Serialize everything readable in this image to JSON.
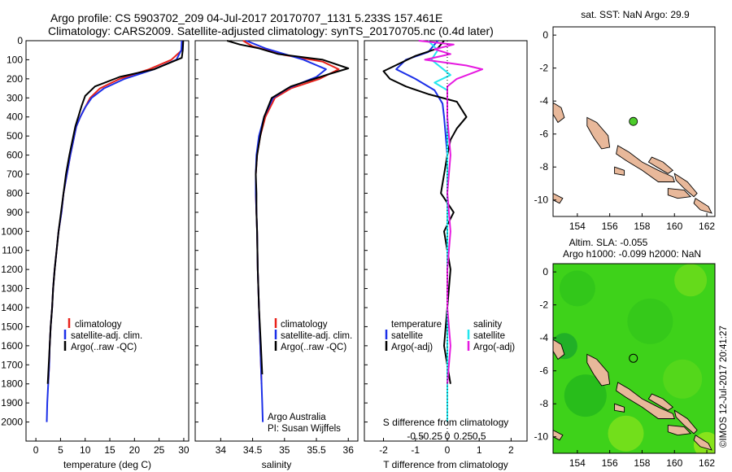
{
  "header": {
    "line1": "Argo profile: CS 5903702_209 04-Jul-2017 20170707_1131 5.233S 157.461E",
    "line2": "Climatology: CARS2009. Satellite-adjusted climatology: synTS_20170705.nc (0.4d later)"
  },
  "colors": {
    "climatology": "#e8221b",
    "satellite": "#1b2fe8",
    "argo": "#000000",
    "satellite_s": "#22e6ee",
    "argo_s": "#e619e0",
    "land": "#e8b89a",
    "argo_marker": "#4ccc2a",
    "sla_background": "#3ed21a"
  },
  "legends": {
    "temp": [
      "climatology",
      "satellite-adj. clim.",
      "Argo(..raw -QC)"
    ],
    "sal": [
      "climatology",
      "satellite-adj. clim.",
      "Argo(..raw -QC)"
    ],
    "diff_t_title": "temperature",
    "diff_t": [
      "satellite",
      "Argo(-adj)"
    ],
    "diff_s_title": "salinity",
    "diff_s": [
      "satellite",
      "Argo(-adj)"
    ]
  },
  "annotations": {
    "argo_australia": "Argo Australia",
    "pi": "PI: Susan Wijffels",
    "sst": "sat. SST: NaN Argo: 29.9",
    "sla1": "Altim. SLA: -0.055",
    "sla2": "Argo h1000: -0.099 h2000: NaN",
    "credit": "©IMOS 12-Jul-2017 20:41:27"
  },
  "chart_data": [
    {
      "type": "line",
      "xlabel": "temperature (deg C)",
      "xlim": [
        -2,
        31
      ],
      "xticks": [
        0,
        5,
        10,
        15,
        20,
        25,
        30
      ],
      "ylim": [
        2100,
        0
      ],
      "yticks": [
        0,
        100,
        200,
        300,
        400,
        500,
        600,
        700,
        800,
        900,
        1000,
        1100,
        1200,
        1300,
        1400,
        1500,
        1600,
        1700,
        1800,
        1900,
        2000
      ],
      "series": [
        {
          "name": "climatology",
          "color": "climatology",
          "points": [
            [
              29.7,
              0
            ],
            [
              29.6,
              50
            ],
            [
              27.5,
              100
            ],
            [
              23,
              150
            ],
            [
              17,
              200
            ],
            [
              13,
              250
            ],
            [
              11,
              300
            ],
            [
              10,
              350
            ],
            [
              9,
              400
            ],
            [
              8.2,
              450
            ],
            [
              7.8,
              500
            ],
            [
              7,
              600
            ],
            [
              6.3,
              700
            ],
            [
              5.6,
              800
            ],
            [
              5.2,
              900
            ],
            [
              4.6,
              1000
            ],
            [
              4.2,
              1100
            ],
            [
              3.8,
              1200
            ],
            [
              3.5,
              1300
            ],
            [
              3.3,
              1400
            ],
            [
              3,
              1500
            ],
            [
              2.8,
              1600
            ],
            [
              2.7,
              1700
            ],
            [
              2.5,
              1800
            ]
          ]
        },
        {
          "name": "satellite-adj. clim.",
          "color": "satellite",
          "points": [
            [
              29.6,
              0
            ],
            [
              29.5,
              50
            ],
            [
              28.5,
              100
            ],
            [
              24,
              150
            ],
            [
              18,
              200
            ],
            [
              13.8,
              250
            ],
            [
              11.3,
              300
            ],
            [
              10,
              350
            ],
            [
              9,
              400
            ],
            [
              8.2,
              450
            ],
            [
              7.8,
              500
            ],
            [
              7,
              600
            ],
            [
              6.3,
              700
            ],
            [
              5.6,
              800
            ],
            [
              5.2,
              900
            ],
            [
              4.6,
              1000
            ],
            [
              4.2,
              1100
            ],
            [
              3.8,
              1200
            ],
            [
              3.5,
              1300
            ],
            [
              3.3,
              1400
            ],
            [
              3,
              1500
            ],
            [
              2.8,
              1600
            ],
            [
              2.7,
              1700
            ],
            [
              2.5,
              1800
            ],
            [
              2.3,
              1900
            ],
            [
              2.2,
              2000
            ]
          ]
        },
        {
          "name": "Argo(..raw -QC)",
          "color": "argo",
          "points": [
            [
              29.9,
              0
            ],
            [
              29.8,
              50
            ],
            [
              29.6,
              90
            ],
            [
              24,
              150
            ],
            [
              17,
              190
            ],
            [
              12,
              240
            ],
            [
              10,
              290
            ],
            [
              9.3,
              340
            ],
            [
              8.6,
              400
            ],
            [
              8,
              450
            ],
            [
              7.6,
              500
            ],
            [
              6.8,
              600
            ],
            [
              6.1,
              700
            ],
            [
              5.6,
              800
            ],
            [
              5.1,
              900
            ],
            [
              4.6,
              1000
            ],
            [
              4.2,
              1100
            ],
            [
              3.8,
              1200
            ],
            [
              3.5,
              1300
            ],
            [
              3.3,
              1400
            ],
            [
              3,
              1500
            ],
            [
              2.8,
              1600
            ],
            [
              2.6,
              1700
            ],
            [
              2.4,
              1800
            ]
          ]
        }
      ]
    },
    {
      "type": "line",
      "xlabel": "salinity",
      "xlim": [
        33.6,
        36.15
      ],
      "xticks": [
        34,
        34.5,
        35,
        35.5,
        36
      ],
      "xticklabels": [
        "34",
        "34.5",
        "35",
        "35.5",
        "36"
      ],
      "ylim": [
        2100,
        0
      ],
      "series": [
        {
          "name": "climatology",
          "color": "climatology",
          "points": [
            [
              34.35,
              0
            ],
            [
              34.5,
              30
            ],
            [
              35,
              75
            ],
            [
              35.6,
              110
            ],
            [
              35.85,
              150
            ],
            [
              35.55,
              200
            ],
            [
              35.1,
              250
            ],
            [
              34.85,
              300
            ],
            [
              34.7,
              400
            ],
            [
              34.62,
              500
            ],
            [
              34.57,
              600
            ],
            [
              34.55,
              700
            ],
            [
              34.55,
              800
            ],
            [
              34.56,
              900
            ],
            [
              34.57,
              1000
            ],
            [
              34.58,
              1200
            ],
            [
              34.6,
              1400
            ],
            [
              34.62,
              1600
            ],
            [
              34.64,
              1800
            ]
          ]
        },
        {
          "name": "satellite-adj. clim.",
          "color": "satellite",
          "points": [
            [
              34.4,
              0
            ],
            [
              34.7,
              40
            ],
            [
              35.3,
              100
            ],
            [
              35.65,
              150
            ],
            [
              35.5,
              190
            ],
            [
              35.05,
              250
            ],
            [
              34.82,
              300
            ],
            [
              34.68,
              400
            ],
            [
              34.6,
              500
            ],
            [
              34.56,
              600
            ],
            [
              34.55,
              700
            ],
            [
              34.55,
              800
            ],
            [
              34.56,
              900
            ],
            [
              34.57,
              1000
            ],
            [
              34.58,
              1200
            ],
            [
              34.6,
              1400
            ],
            [
              34.62,
              1600
            ],
            [
              34.64,
              1800
            ],
            [
              34.65,
              1900
            ],
            [
              34.66,
              2000
            ]
          ]
        },
        {
          "name": "Argo(..raw -QC)",
          "color": "argo",
          "points": [
            [
              34.1,
              0
            ],
            [
              34.3,
              20
            ],
            [
              34.6,
              40
            ],
            [
              34.9,
              70
            ],
            [
              35.6,
              100
            ],
            [
              36.0,
              145
            ],
            [
              35.7,
              175
            ],
            [
              35.1,
              240
            ],
            [
              34.8,
              300
            ],
            [
              34.68,
              400
            ],
            [
              34.62,
              500
            ],
            [
              34.57,
              600
            ],
            [
              34.55,
              700
            ],
            [
              34.56,
              800
            ],
            [
              34.56,
              900
            ],
            [
              34.57,
              1000
            ],
            [
              34.58,
              1200
            ],
            [
              34.6,
              1400
            ],
            [
              34.63,
              1600
            ],
            [
              34.65,
              1750
            ]
          ]
        }
      ]
    },
    {
      "type": "line",
      "xlabel": "T difference from climatology",
      "xlabel_top": "S difference from climatology",
      "xlim": [
        -2.6,
        2.5
      ],
      "xticks": [
        -2,
        -1,
        0,
        1,
        2
      ],
      "x2ticks": [
        -0.5,
        -0.25,
        0,
        0.25,
        0.5
      ],
      "x2ticklabels": [
        "-0.5",
        "-0.25",
        "0",
        "0.25",
        "0.5"
      ],
      "ylim": [
        2100,
        0
      ],
      "series": [
        {
          "name": "temperature satellite",
          "color": "satellite",
          "points": [
            [
              -0.3,
              0
            ],
            [
              -0.6,
              60
            ],
            [
              -1.3,
              100
            ],
            [
              -1.6,
              150
            ],
            [
              -1,
              200
            ],
            [
              -0.4,
              260
            ],
            [
              -0.15,
              330
            ],
            [
              -0.1,
              400
            ],
            [
              -0.05,
              500
            ],
            [
              0,
              600
            ],
            [
              0,
              1000
            ],
            [
              0,
              1400
            ],
            [
              0,
              1800
            ]
          ]
        },
        {
          "name": "temperature Argo(-adj)",
          "color": "argo",
          "points": [
            [
              -0.1,
              0
            ],
            [
              -0.3,
              40
            ],
            [
              -1,
              80
            ],
            [
              -2,
              160
            ],
            [
              -1.8,
              200
            ],
            [
              -1.3,
              240
            ],
            [
              -0.6,
              280
            ],
            [
              0.3,
              320
            ],
            [
              0.6,
              400
            ],
            [
              0.3,
              460
            ],
            [
              0.1,
              520
            ],
            [
              0,
              600
            ],
            [
              -0.2,
              800
            ],
            [
              0.2,
              900
            ],
            [
              -0.1,
              1000
            ],
            [
              0.1,
              1200
            ],
            [
              0,
              1400
            ],
            [
              -0.1,
              1600
            ],
            [
              0.1,
              1800
            ]
          ]
        },
        {
          "name": "salinity satellite",
          "color": "satellite_s",
          "points": [
            [
              -0.6,
              0
            ],
            [
              -0.3,
              50
            ],
            [
              -0.5,
              100
            ],
            [
              0.1,
              180
            ],
            [
              -0.4,
              220
            ],
            [
              0,
              260
            ],
            [
              0,
              400
            ],
            [
              0,
              1000
            ],
            [
              0,
              1500
            ],
            [
              0,
              2000
            ]
          ]
        },
        {
          "name": "salinity Argo(-adj)",
          "color": "argo_s",
          "points": [
            [
              -0.9,
              0
            ],
            [
              0.2,
              20
            ],
            [
              -0.4,
              45
            ],
            [
              0.1,
              70
            ],
            [
              -0.7,
              100
            ],
            [
              0.6,
              130
            ],
            [
              1.1,
              150
            ],
            [
              0.3,
              200
            ],
            [
              0,
              240
            ],
            [
              0,
              400
            ],
            [
              0.1,
              600
            ],
            [
              0,
              800
            ],
            [
              0.1,
              1000
            ],
            [
              0,
              1200
            ],
            [
              0,
              1400
            ],
            [
              0.1,
              1600
            ],
            [
              0,
              1800
            ]
          ]
        }
      ]
    },
    {
      "type": "map",
      "title": "sat. SST: NaN Argo: 29.9",
      "xlim": [
        152.5,
        162.5
      ],
      "ylim": [
        -11,
        0.5
      ],
      "xticks": [
        154,
        156,
        158,
        160,
        162
      ],
      "yticks": [
        0,
        -2,
        -4,
        -6,
        -8,
        -10
      ],
      "argo_position": [
        157.461,
        -5.233
      ],
      "argo_sst": 29.9
    },
    {
      "type": "map",
      "title": "Altim. SLA: -0.055",
      "subtitle": "Argo h1000: -0.099 h2000: NaN",
      "xlim": [
        152.5,
        162.5
      ],
      "ylim": [
        -11,
        0.5
      ],
      "xticks": [
        154,
        156,
        158,
        160,
        162
      ],
      "yticks": [
        0,
        -2,
        -4,
        -6,
        -8,
        -10
      ],
      "argo_position": [
        157.461,
        -5.233
      ],
      "altim_sla": -0.055,
      "argo_h1000": -0.099
    }
  ]
}
